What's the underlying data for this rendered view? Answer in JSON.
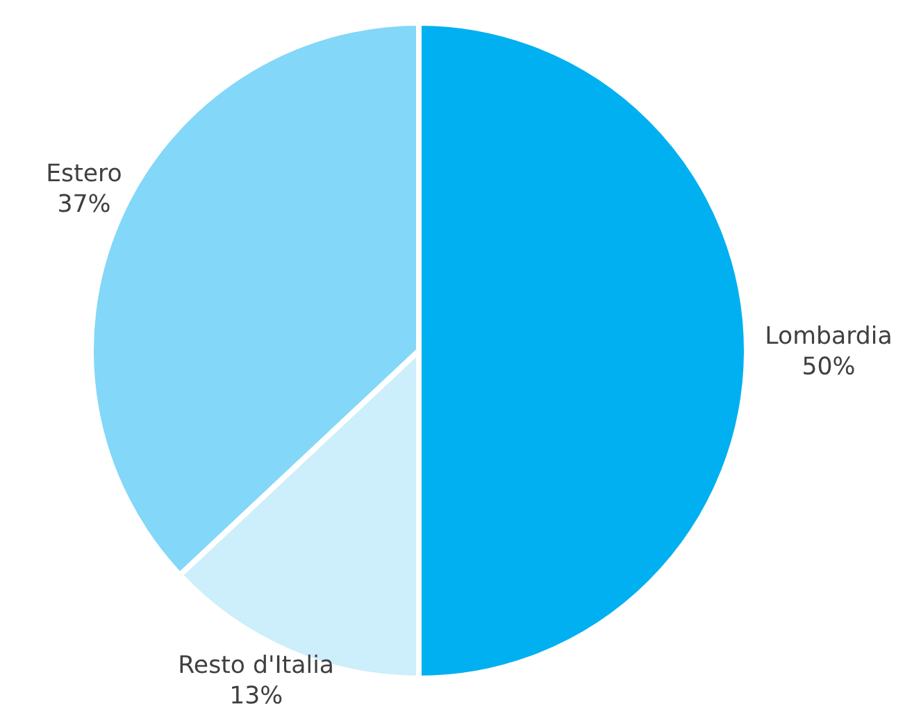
{
  "chart_data": {
    "type": "pie",
    "categories": [
      "Lombardia",
      "Resto d'Italia",
      "Estero"
    ],
    "values": [
      50,
      13,
      37
    ],
    "colors": [
      "#00b0f0",
      "#cdeefb",
      "#83d7f8"
    ],
    "value_labels": [
      "50%",
      "13%",
      "37%"
    ]
  }
}
